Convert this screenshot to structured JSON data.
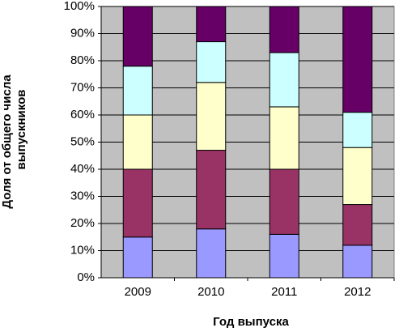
{
  "chart_data": {
    "type": "stacked_bar_percent",
    "ylabel": [
      "Доля от общего числа",
      "выпускников"
    ],
    "xlabel": "Год выпуска",
    "categories": [
      "2009",
      "2010",
      "2011",
      "2012"
    ],
    "series": [
      {
        "color": "#9999ff",
        "values": [
          15,
          18,
          16,
          12
        ]
      },
      {
        "color": "#993366",
        "values": [
          25,
          29,
          24,
          15
        ]
      },
      {
        "color": "#ffffcc",
        "values": [
          20,
          25,
          23,
          21
        ]
      },
      {
        "color": "#ccffff",
        "values": [
          18,
          15,
          20,
          13
        ]
      },
      {
        "color": "#660066",
        "values": [
          22,
          13,
          17,
          39
        ]
      }
    ],
    "ylim": [
      0,
      100
    ],
    "yticks": [
      {
        "value": 0,
        "label": "0%"
      },
      {
        "value": 10,
        "label": "10%"
      },
      {
        "value": 20,
        "label": "20%"
      },
      {
        "value": 30,
        "label": "30%"
      },
      {
        "value": 40,
        "label": "40%"
      },
      {
        "value": 50,
        "label": "50%"
      },
      {
        "value": 60,
        "label": "60%"
      },
      {
        "value": 70,
        "label": "70%"
      },
      {
        "value": 80,
        "label": "80%"
      },
      {
        "value": 90,
        "label": "90%"
      },
      {
        "value": 100,
        "label": "100%"
      }
    ],
    "grid": true,
    "background": "#c0c0c0"
  }
}
